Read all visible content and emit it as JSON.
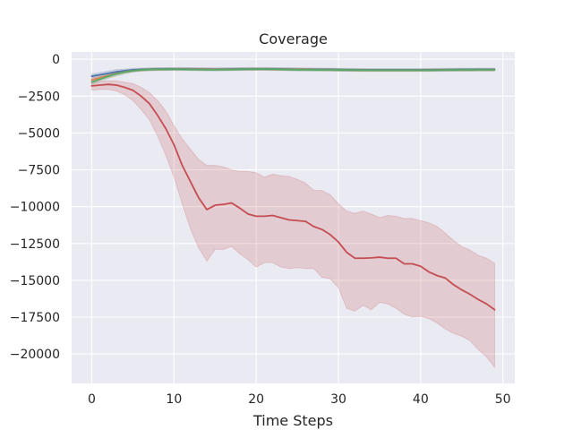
{
  "chart_data": {
    "type": "line",
    "title": "Coverage",
    "xlabel": "Time Steps",
    "ylabel": "",
    "xlim": [
      -2.45,
      51.45
    ],
    "ylim": [
      -22000,
      500
    ],
    "xticks": [
      0,
      10,
      20,
      30,
      40,
      50
    ],
    "yticks": [
      0,
      -2500,
      -5000,
      -7500,
      -10000,
      -12500,
      -15000,
      -17500,
      -20000
    ],
    "grid": true,
    "legend": "none",
    "background": "#eaeaf2",
    "series": [
      {
        "color": "#4c72b0",
        "x": [
          0,
          1,
          2,
          3,
          4,
          5,
          6,
          7,
          8,
          9,
          10,
          11,
          12,
          13,
          14,
          15,
          16,
          17,
          18,
          19,
          20,
          21,
          22,
          23,
          24,
          25,
          26,
          27,
          28,
          29,
          30,
          31,
          32,
          33,
          34,
          35,
          36,
          37,
          38,
          39,
          40,
          41,
          42,
          43,
          44,
          45,
          46,
          47,
          48,
          49
        ],
        "values": [
          -1150,
          -1050,
          -950,
          -850,
          -780,
          -720,
          -690,
          -670,
          -660,
          -655,
          -650,
          -650,
          -655,
          -660,
          -665,
          -670,
          -665,
          -660,
          -655,
          -650,
          -650,
          -650,
          -655,
          -660,
          -665,
          -670,
          -675,
          -680,
          -685,
          -690,
          -700,
          -710,
          -715,
          -720,
          -720,
          -720,
          -720,
          -720,
          -720,
          -720,
          -720,
          -715,
          -710,
          -705,
          -700,
          -695,
          -695,
          -690,
          -690,
          -690
        ],
        "lower": [
          -1300,
          -1200,
          -1100,
          -1000,
          -900,
          -820,
          -780,
          -760,
          -750,
          -745,
          -740,
          -740,
          -745,
          -750,
          -755,
          -760,
          -755,
          -750,
          -745,
          -740,
          -740,
          -740,
          -745,
          -750,
          -755,
          -760,
          -765,
          -770,
          -775,
          -780,
          -790,
          -800,
          -805,
          -810,
          -810,
          -810,
          -810,
          -810,
          -810,
          -810,
          -810,
          -805,
          -800,
          -795,
          -790,
          -785,
          -785,
          -780,
          -780,
          -780
        ],
        "upper": [
          -1000,
          -900,
          -800,
          -700,
          -660,
          -620,
          -600,
          -580,
          -570,
          -565,
          -560,
          -560,
          -565,
          -570,
          -575,
          -580,
          -575,
          -570,
          -565,
          -560,
          -560,
          -560,
          -565,
          -570,
          -575,
          -580,
          -585,
          -590,
          -595,
          -600,
          -610,
          -620,
          -625,
          -630,
          -630,
          -630,
          -630,
          -630,
          -630,
          -630,
          -630,
          -625,
          -620,
          -615,
          -610,
          -605,
          -605,
          -600,
          -600,
          -600
        ]
      },
      {
        "color": "#dd8452",
        "x": [
          0,
          1,
          2,
          3,
          4,
          5,
          6,
          7,
          8,
          9,
          10,
          11,
          12,
          13,
          14,
          15,
          16,
          17,
          18,
          19,
          20,
          21,
          22,
          23,
          24,
          25,
          26,
          27,
          28,
          29,
          30,
          31,
          32,
          33,
          34,
          35,
          36,
          37,
          38,
          39,
          40,
          41,
          42,
          43,
          44,
          45,
          46,
          47,
          48,
          49
        ],
        "values": [
          -1400,
          -1250,
          -1100,
          -950,
          -850,
          -770,
          -720,
          -690,
          -675,
          -670,
          -665,
          -665,
          -670,
          -675,
          -680,
          -685,
          -680,
          -675,
          -670,
          -665,
          -665,
          -665,
          -670,
          -675,
          -680,
          -685,
          -690,
          -695,
          -700,
          -705,
          -715,
          -725,
          -730,
          -735,
          -735,
          -735,
          -735,
          -735,
          -735,
          -735,
          -735,
          -730,
          -725,
          -720,
          -715,
          -710,
          -710,
          -705,
          -705,
          -705
        ],
        "lower": [
          -1550,
          -1400,
          -1250,
          -1100,
          -950,
          -860,
          -800,
          -770,
          -755,
          -750,
          -745,
          -745,
          -750,
          -755,
          -760,
          -765,
          -760,
          -755,
          -750,
          -745,
          -745,
          -745,
          -750,
          -755,
          -760,
          -765,
          -770,
          -775,
          -780,
          -785,
          -795,
          -805,
          -810,
          -815,
          -815,
          -815,
          -815,
          -815,
          -815,
          -815,
          -815,
          -810,
          -805,
          -800,
          -795,
          -790,
          -790,
          -785,
          -785,
          -785
        ],
        "upper": [
          -1250,
          -1100,
          -950,
          -800,
          -750,
          -680,
          -640,
          -610,
          -595,
          -590,
          -585,
          -585,
          -590,
          -595,
          -600,
          -605,
          -600,
          -595,
          -590,
          -585,
          -585,
          -585,
          -590,
          -595,
          -600,
          -605,
          -610,
          -615,
          -620,
          -625,
          -635,
          -645,
          -650,
          -655,
          -655,
          -655,
          -655,
          -655,
          -655,
          -655,
          -655,
          -650,
          -645,
          -640,
          -635,
          -630,
          -630,
          -625,
          -625,
          -625
        ]
      },
      {
        "color": "#55a868",
        "x": [
          0,
          1,
          2,
          3,
          4,
          5,
          6,
          7,
          8,
          9,
          10,
          11,
          12,
          13,
          14,
          15,
          16,
          17,
          18,
          19,
          20,
          21,
          22,
          23,
          24,
          25,
          26,
          27,
          28,
          29,
          30,
          31,
          32,
          33,
          34,
          35,
          36,
          37,
          38,
          39,
          40,
          41,
          42,
          43,
          44,
          45,
          46,
          47,
          48,
          49
        ],
        "values": [
          -1550,
          -1350,
          -1150,
          -980,
          -860,
          -770,
          -720,
          -690,
          -680,
          -675,
          -670,
          -675,
          -685,
          -695,
          -700,
          -700,
          -695,
          -685,
          -675,
          -670,
          -665,
          -665,
          -670,
          -680,
          -695,
          -705,
          -710,
          -712,
          -714,
          -716,
          -720,
          -725,
          -730,
          -735,
          -738,
          -740,
          -740,
          -740,
          -740,
          -740,
          -738,
          -735,
          -730,
          -725,
          -720,
          -715,
          -712,
          -710,
          -708,
          -705
        ],
        "lower": [
          -1700,
          -1500,
          -1300,
          -1120,
          -980,
          -870,
          -810,
          -780,
          -765,
          -760,
          -755,
          -760,
          -770,
          -780,
          -785,
          -785,
          -780,
          -770,
          -760,
          -755,
          -750,
          -750,
          -755,
          -765,
          -780,
          -790,
          -795,
          -797,
          -799,
          -801,
          -805,
          -810,
          -815,
          -820,
          -823,
          -825,
          -825,
          -825,
          -825,
          -825,
          -823,
          -820,
          -815,
          -810,
          -805,
          -800,
          -797,
          -795,
          -793,
          -790
        ],
        "upper": [
          -1400,
          -1200,
          -1000,
          -840,
          -740,
          -670,
          -630,
          -600,
          -595,
          -590,
          -585,
          -590,
          -600,
          -610,
          -615,
          -615,
          -610,
          -600,
          -590,
          -585,
          -580,
          -580,
          -585,
          -595,
          -610,
          -620,
          -625,
          -627,
          -629,
          -631,
          -635,
          -640,
          -645,
          -650,
          -653,
          -655,
          -655,
          -655,
          -655,
          -655,
          -653,
          -650,
          -645,
          -640,
          -635,
          -630,
          -627,
          -625,
          -623,
          -620
        ]
      },
      {
        "color": "#c44e52",
        "x": [
          0,
          1,
          2,
          3,
          4,
          5,
          6,
          7,
          8,
          9,
          10,
          11,
          12,
          13,
          14,
          15,
          16,
          17,
          18,
          19,
          20,
          21,
          22,
          23,
          24,
          25,
          26,
          27,
          28,
          29,
          30,
          31,
          32,
          33,
          34,
          35,
          36,
          37,
          38,
          39,
          40,
          41,
          42,
          43,
          44,
          45,
          46,
          47,
          48,
          49
        ],
        "values": [
          -1800,
          -1750,
          -1700,
          -1750,
          -1900,
          -2100,
          -2500,
          -3000,
          -3800,
          -4700,
          -5800,
          -7200,
          -8300,
          -9400,
          -10200,
          -9900,
          -9850,
          -9750,
          -10100,
          -10500,
          -10650,
          -10650,
          -10600,
          -10750,
          -10900,
          -10950,
          -11000,
          -11350,
          -11550,
          -11900,
          -12400,
          -13100,
          -13500,
          -13500,
          -13480,
          -13430,
          -13500,
          -13500,
          -13880,
          -13880,
          -14050,
          -14430,
          -14680,
          -14850,
          -15300,
          -15650,
          -15950,
          -16300,
          -16600,
          -17000
        ],
        "lower": [
          -2100,
          -2050,
          -2050,
          -2150,
          -2400,
          -2800,
          -3400,
          -4100,
          -5200,
          -6500,
          -8000,
          -9800,
          -11500,
          -12800,
          -13700,
          -12900,
          -12900,
          -12700,
          -13200,
          -13600,
          -14100,
          -13800,
          -13800,
          -14100,
          -14200,
          -14150,
          -14200,
          -14200,
          -14800,
          -14900,
          -15500,
          -16900,
          -17100,
          -16700,
          -17000,
          -16500,
          -16600,
          -16900,
          -17300,
          -17500,
          -17450,
          -17600,
          -17900,
          -18300,
          -18600,
          -18800,
          -19100,
          -19700,
          -20200,
          -20900
        ],
        "upper": [
          -1600,
          -1500,
          -1450,
          -1450,
          -1550,
          -1650,
          -1900,
          -2250,
          -2800,
          -3500,
          -4500,
          -5400,
          -6100,
          -6800,
          -7200,
          -7200,
          -7300,
          -7500,
          -7600,
          -7600,
          -7700,
          -8000,
          -7800,
          -7900,
          -7950,
          -8150,
          -8400,
          -8900,
          -8900,
          -9200,
          -9800,
          -10300,
          -10450,
          -10300,
          -10500,
          -10750,
          -10600,
          -10650,
          -10800,
          -10800,
          -10950,
          -11100,
          -11350,
          -11800,
          -12300,
          -12700,
          -12950,
          -13300,
          -13500,
          -13850
        ]
      }
    ]
  }
}
